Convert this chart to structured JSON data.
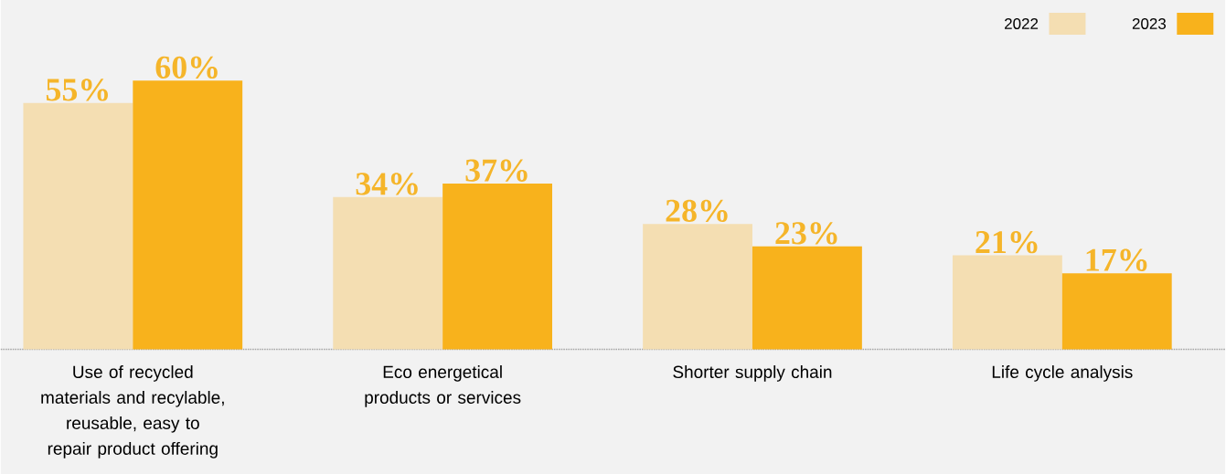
{
  "chart_data": {
    "type": "bar",
    "categories": [
      "Use of recycled materials and recylable, reusable, easy to repair product offering",
      "Eco energetical products or services",
      "Shorter supply chain",
      "Life cycle analysis"
    ],
    "series": [
      {
        "name": "2022",
        "color": "#f4deb2",
        "values": [
          55,
          34,
          28,
          21
        ],
        "value_labels": [
          "55%",
          "34%",
          "28%",
          "21%"
        ]
      },
      {
        "name": "2023",
        "color": "#f8b21c",
        "values": [
          60,
          37,
          23,
          17
        ],
        "value_labels": [
          "60%",
          "37%",
          "23%",
          "17%"
        ]
      }
    ],
    "ylim": [
      0,
      78
    ],
    "legend": "top right",
    "tick_labels": "x"
  }
}
